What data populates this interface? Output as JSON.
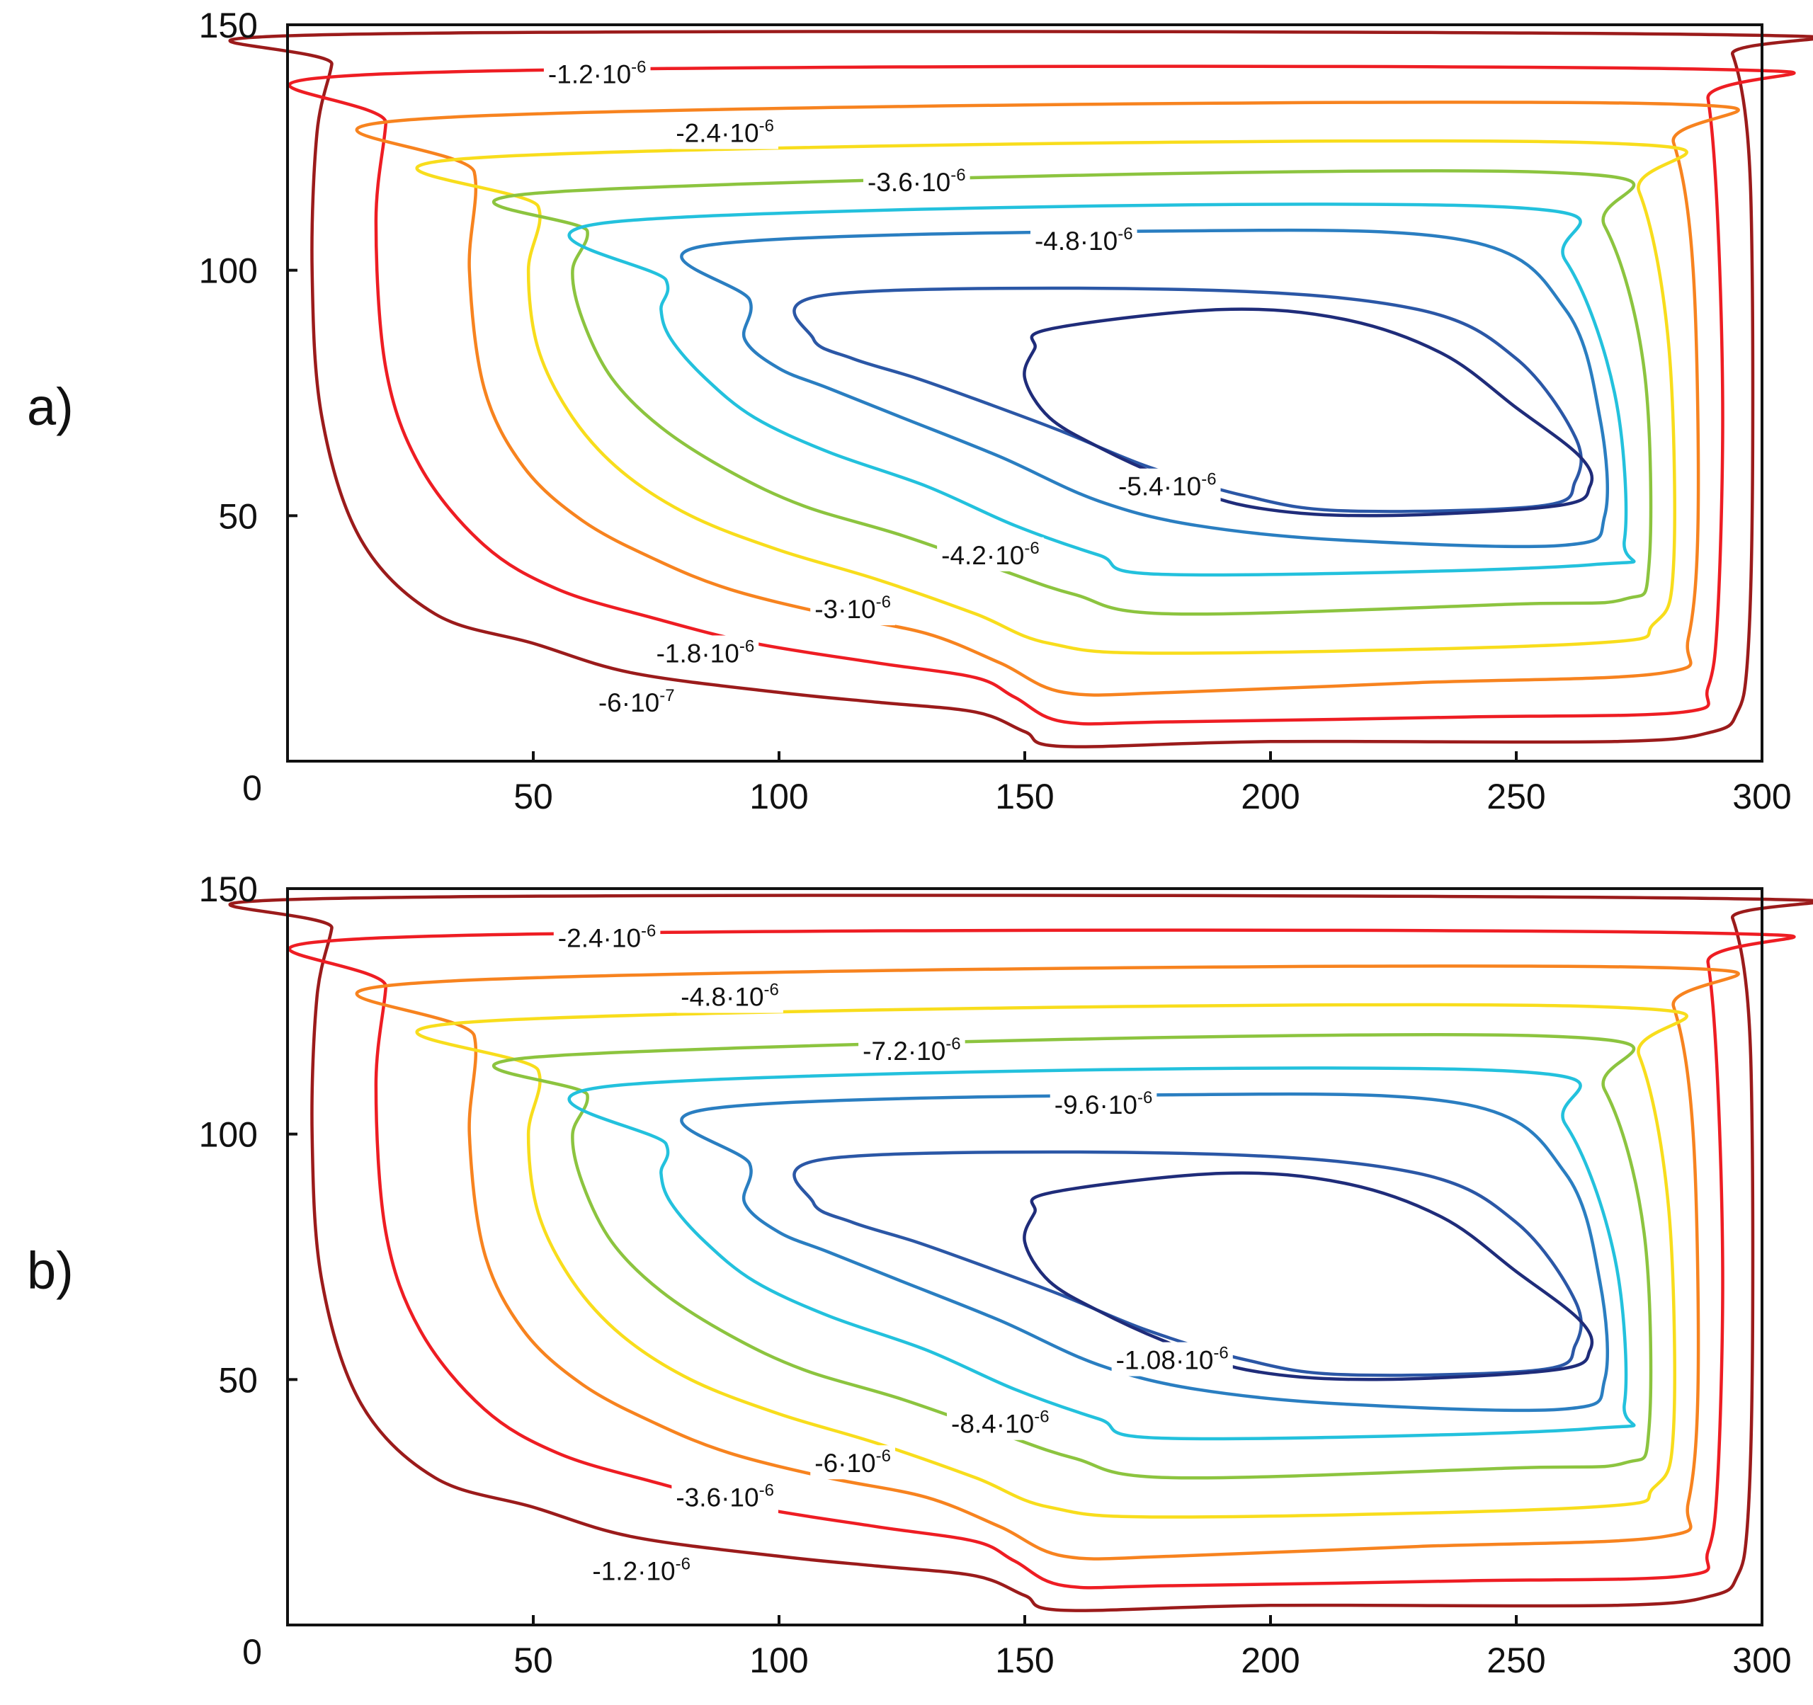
{
  "chart_data": [
    {
      "type": "contour",
      "panel_label": "a)",
      "title": "",
      "xlabel": "",
      "ylabel": "",
      "xlim": [
        0,
        300
      ],
      "ylim": [
        0,
        150
      ],
      "x_ticks": [
        0,
        50,
        100,
        150,
        200,
        250,
        300
      ],
      "y_ticks": [
        50,
        100,
        150
      ],
      "x_tick_labels": [
        "50",
        "100",
        "150",
        "200",
        "250",
        "300"
      ],
      "y_tick_labels": [
        "50",
        "100",
        "150"
      ],
      "origin_label": "0",
      "levels": [
        {
          "mantissa": "-6",
          "exponent": "-7",
          "color": "#9b1b1b"
        },
        {
          "mantissa": "-1.2",
          "exponent": "-6",
          "color": "#ee1d23"
        },
        {
          "mantissa": "-1.8",
          "exponent": "-6",
          "color": "#f7831f"
        },
        {
          "mantissa": "-2.4",
          "exponent": "-6",
          "color": "#f8dd1c"
        },
        {
          "mantissa": "-3",
          "exponent": "-6",
          "color": "#8cc43f"
        },
        {
          "mantissa": "-3.6",
          "exponent": "-6",
          "color": "#23c1dd"
        },
        {
          "mantissa": "-4.2",
          "exponent": "-6",
          "color": "#2a7ec1"
        },
        {
          "mantissa": "-4.8",
          "exponent": "-6",
          "color": "#2b57a6"
        },
        {
          "mantissa": "-5.4",
          "exponent": "-6",
          "color": "#1f2c7a"
        }
      ]
    },
    {
      "type": "contour",
      "panel_label": "b)",
      "title": "",
      "xlabel": "",
      "ylabel": "",
      "xlim": [
        0,
        300
      ],
      "ylim": [
        0,
        150
      ],
      "x_ticks": [
        0,
        50,
        100,
        150,
        200,
        250,
        300
      ],
      "y_ticks": [
        50,
        100,
        150
      ],
      "x_tick_labels": [
        "50",
        "100",
        "150",
        "200",
        "250",
        "300"
      ],
      "y_tick_labels": [
        "50",
        "100",
        "150"
      ],
      "origin_label": "0",
      "levels": [
        {
          "mantissa": "-1.2",
          "exponent": "-6",
          "color": "#9b1b1b"
        },
        {
          "mantissa": "-2.4",
          "exponent": "-6",
          "color": "#ee1d23"
        },
        {
          "mantissa": "-3.6",
          "exponent": "-6",
          "color": "#f7831f"
        },
        {
          "mantissa": "-4.8",
          "exponent": "-6",
          "color": "#f8dd1c"
        },
        {
          "mantissa": "-6",
          "exponent": "-6",
          "color": "#8cc43f"
        },
        {
          "mantissa": "-7.2",
          "exponent": "-6",
          "color": "#23c1dd"
        },
        {
          "mantissa": "-8.4",
          "exponent": "-6",
          "color": "#2a7ec1"
        },
        {
          "mantissa": "-9.6",
          "exponent": "-6",
          "color": "#2b57a6"
        },
        {
          "mantissa": "-1.08",
          "exponent": "-6",
          "color": "#1f2c7a"
        }
      ]
    }
  ]
}
